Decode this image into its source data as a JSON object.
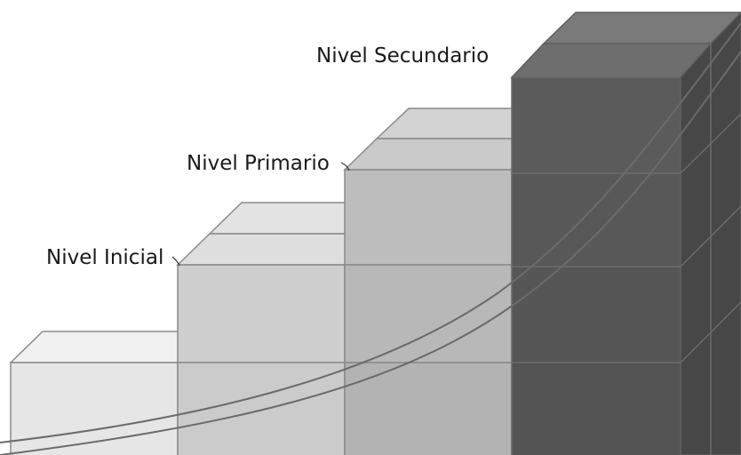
{
  "labels": {
    "inicial": "Nivel Inicial",
    "primario": "Nivel Primario",
    "secundario": "Nivel Secundario"
  },
  "steps": [
    {
      "name": "inicial",
      "level": 1,
      "color": "#e8e8e8"
    },
    {
      "name": "block-2",
      "level": 2,
      "color": "#cfcfcf"
    },
    {
      "name": "primario",
      "level": 3,
      "color": "#bdbdbd"
    },
    {
      "name": "secundario",
      "level": 4,
      "color": "#5b5b5b"
    }
  ]
}
